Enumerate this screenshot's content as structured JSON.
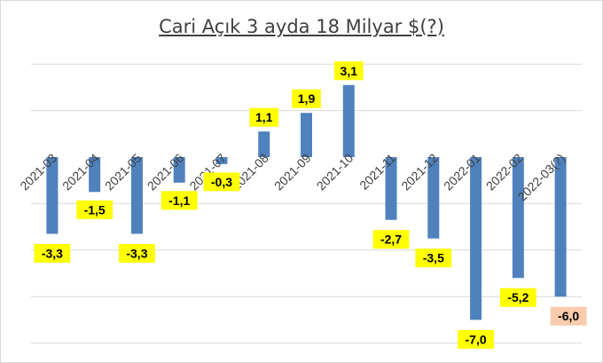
{
  "chart_data": {
    "type": "bar",
    "title": "Cari Açık 3 ayda 18 Milyar $(?)",
    "categories": [
      "2021-03",
      "2021-04",
      "2021-05",
      "2021-06",
      "2021-07",
      "2021-08",
      "2021-09",
      "2021-10",
      "2021-11",
      "2021-12",
      "2022-01",
      "2022-02",
      "2022-03(?)"
    ],
    "values": [
      -3.3,
      -1.5,
      -3.3,
      -1.1,
      -0.3,
      1.1,
      1.9,
      3.1,
      -2.7,
      -3.5,
      -7.0,
      -5.2,
      -6.0
    ],
    "data_labels": [
      "-3,3",
      "-1,5",
      "-3,3",
      "-1,1",
      "-0,3",
      "1,1",
      "1,9",
      "3,1",
      "-2,7",
      "-3,5",
      "-7,0",
      "-5,2",
      "-6,0"
    ],
    "ylim": [
      -8,
      4
    ],
    "grid": true,
    "legend": "none",
    "colors": {
      "bar": "#4f81bd",
      "label_bg": "#ffff00",
      "estimate_label_bg": "#f8cbad",
      "grid": "#d9d9d9",
      "text": "#404040"
    }
  }
}
